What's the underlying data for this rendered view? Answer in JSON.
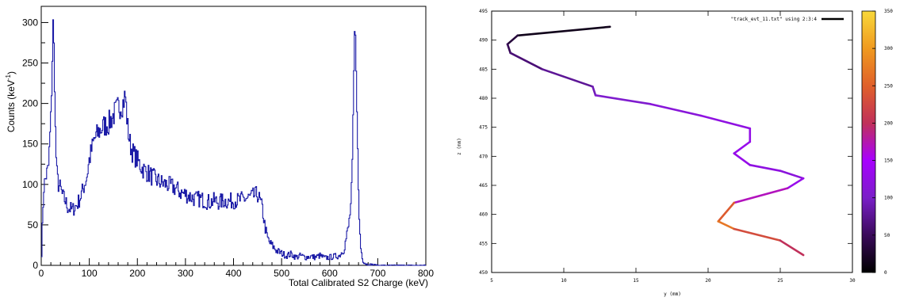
{
  "chart_data": [
    {
      "type": "line",
      "subtype": "histogram",
      "title": "",
      "xlabel": "Total Calibrated S2 Charge (keV)",
      "ylabel": "Counts (keV",
      "ylabel_sup": "-1",
      "ylabel_close": ")",
      "xlim": [
        0,
        800
      ],
      "ylim": [
        0,
        320
      ],
      "xticks": [
        "0",
        "100",
        "200",
        "300",
        "400",
        "500",
        "600",
        "700",
        "800"
      ],
      "yticks": [
        "0",
        "50",
        "100",
        "150",
        "200",
        "250",
        "300"
      ],
      "line_color": "#1a1aa6",
      "grid": false,
      "series": [
        {
          "x": [
            0,
            5,
            10,
            15,
            20,
            25,
            28,
            30,
            33,
            36,
            40,
            45,
            50,
            55,
            60,
            65,
            70,
            75,
            80,
            85,
            90,
            95,
            100,
            110,
            120,
            130,
            140,
            150,
            160,
            170,
            175,
            180,
            185,
            190,
            200,
            210,
            220,
            230,
            240,
            250,
            260,
            270,
            280,
            290,
            300,
            310,
            320,
            330,
            340,
            350,
            360,
            370,
            380,
            390,
            400,
            410,
            420,
            430,
            440,
            450,
            455,
            460,
            465,
            470,
            475,
            480,
            490,
            500,
            510,
            520,
            530,
            540,
            550,
            560,
            570,
            580,
            590,
            600,
            610,
            620,
            630,
            635,
            640,
            645,
            648,
            650,
            652,
            654,
            656,
            658,
            660,
            662,
            665,
            670,
            675,
            680,
            690,
            700,
            720,
            740,
            760,
            780,
            800
          ],
          "y": [
            0,
            95,
            110,
            120,
            180,
            300,
            230,
            150,
            110,
            100,
            95,
            85,
            80,
            72,
            70,
            68,
            72,
            75,
            82,
            90,
            100,
            110,
            130,
            155,
            165,
            172,
            175,
            185,
            195,
            200,
            210,
            170,
            150,
            140,
            130,
            120,
            115,
            110,
            105,
            102,
            100,
            98,
            95,
            90,
            88,
            85,
            82,
            82,
            80,
            78,
            80,
            78,
            80,
            79,
            80,
            80,
            82,
            83,
            85,
            88,
            80,
            70,
            50,
            35,
            28,
            25,
            18,
            15,
            12,
            14,
            10,
            12,
            10,
            11,
            10,
            12,
            9,
            10,
            11,
            12,
            20,
            35,
            50,
            80,
            140,
            220,
            285,
            270,
            240,
            150,
            90,
            50,
            20,
            5,
            2,
            1,
            1,
            0,
            0,
            0,
            0,
            0,
            0
          ]
        }
      ]
    },
    {
      "type": "line",
      "subtype": "color-mapped track",
      "title": "",
      "xlabel": "y (mm)",
      "ylabel": "z (mm)",
      "xlim": [
        5,
        30
      ],
      "ylim": [
        450,
        495
      ],
      "xticks": [
        "5",
        "10",
        "15",
        "20",
        "25",
        "30"
      ],
      "yticks": [
        "450",
        "455",
        "460",
        "465",
        "470",
        "475",
        "480",
        "485",
        "490",
        "495"
      ],
      "legend": "\"track_evt_11.txt\" using 2:3:4",
      "legend_position": "top-right",
      "colorbar_range": [
        0,
        350
      ],
      "colorbar_ticks": [
        "0",
        "50",
        "100",
        "150",
        "200",
        "250",
        "300",
        "350"
      ],
      "colorbar_stops": [
        "#000000",
        "#3a0a5a",
        "#7a1fc8",
        "#a800ff",
        "#c0305a",
        "#e0602a",
        "#f09a20",
        "#f8d83a"
      ],
      "series": [
        {
          "y_mm": [
            13.2,
            6.8,
            6.1,
            6.3,
            8.5,
            12.0,
            12.2,
            16.0,
            19.5,
            22.9,
            22.9,
            21.8,
            22.9,
            25.0,
            26.6,
            25.5,
            21.8,
            20.7,
            21.8,
            25.0,
            26.6
          ],
          "z_mm": [
            492.3,
            490.8,
            489.3,
            487.8,
            485.0,
            482.0,
            480.5,
            479.0,
            477.0,
            474.8,
            472.5,
            470.5,
            468.5,
            467.5,
            466.2,
            464.5,
            462.0,
            458.8,
            457.5,
            455.5,
            453.0
          ],
          "value": [
            5,
            25,
            40,
            55,
            70,
            85,
            100,
            110,
            120,
            125,
            130,
            135,
            125,
            120,
            115,
            150,
            190,
            300,
            240,
            220,
            180
          ]
        }
      ]
    }
  ]
}
